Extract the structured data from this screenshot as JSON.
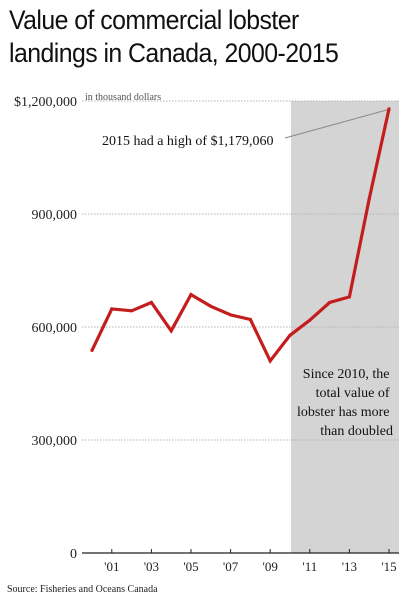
{
  "title": "Value of commercial lobster landings in Canada, 2000-2015",
  "source": "Source: Fisheries and Oceans Canada",
  "chart_data": {
    "type": "line",
    "unit_note": "in thousand dollars",
    "x": [
      2000,
      2001,
      2002,
      2003,
      2004,
      2005,
      2006,
      2007,
      2008,
      2009,
      2010,
      2011,
      2012,
      2013,
      2014,
      2015
    ],
    "series": [
      {
        "values": [
          538000,
          648000,
          643000,
          665000,
          590000,
          686000,
          655000,
          632000,
          620000,
          510000,
          578000,
          618000,
          665000,
          680000,
          940000,
          1179060
        ]
      }
    ],
    "ylim": [
      0,
      1200000
    ],
    "xlim": [
      2000,
      2015
    ],
    "y_ticks": [
      0,
      300000,
      600000,
      900000,
      1200000
    ],
    "y_tick_labels": [
      "0",
      "300,000",
      "600,000",
      "900,000",
      "$1,200,000"
    ],
    "x_ticks": [
      2001,
      2003,
      2005,
      2007,
      2009,
      2011,
      2013,
      2015
    ],
    "x_tick_labels": [
      "'01",
      "'03",
      "'05",
      "'07",
      "'09",
      "'11",
      "'13",
      "'15"
    ],
    "highlight_range": [
      2010,
      2015
    ],
    "annotations": {
      "peak": "2015 had a high of $1,179,060",
      "doubled_lines": [
        "Since 2010, the",
        "total value of",
        "lobster has more",
        "than doubled"
      ]
    },
    "colors": {
      "line": "#c41d1d",
      "highlight": "#d4d4d4",
      "grid": "#b5b5b5"
    },
    "grid": true
  }
}
